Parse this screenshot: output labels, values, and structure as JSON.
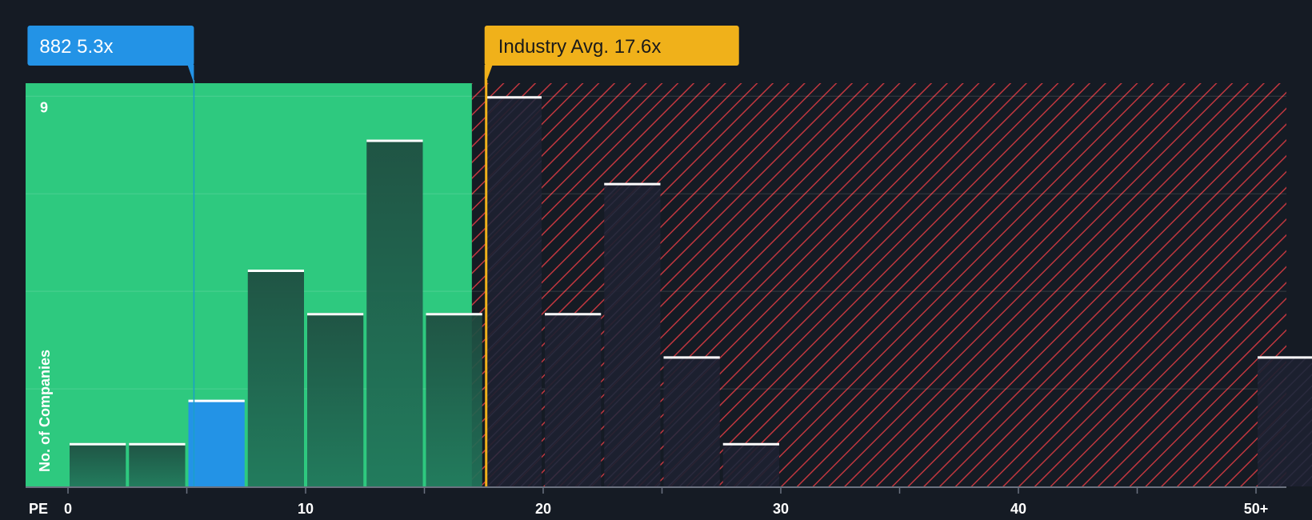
{
  "chart_data": {
    "type": "histogram",
    "xlabel": "PE",
    "ylabel": "No. of Companies",
    "x_ticks": [
      {
        "value": 0,
        "label": "0"
      },
      {
        "value": 10,
        "label": "10"
      },
      {
        "value": 20,
        "label": "20"
      },
      {
        "value": 30,
        "label": "30"
      },
      {
        "value": 40,
        "label": "40"
      },
      {
        "value": 50,
        "label": "50+"
      }
    ],
    "y_tick_label": {
      "value": 9,
      "label": "9"
    },
    "xlim": [
      -1.8,
      51.3
    ],
    "ylim": [
      0,
      9.3
    ],
    "bin_width": 2.5,
    "bins": [
      {
        "start": 0,
        "count": 1
      },
      {
        "start": 2.5,
        "count": 1
      },
      {
        "start": 5,
        "count": 2
      },
      {
        "start": 7.5,
        "count": 5
      },
      {
        "start": 10,
        "count": 4
      },
      {
        "start": 12.5,
        "count": 8
      },
      {
        "start": 15,
        "count": 4
      },
      {
        "start": 17.5,
        "count": 9
      },
      {
        "start": 20,
        "count": 4
      },
      {
        "start": 22.5,
        "count": 7
      },
      {
        "start": 25,
        "count": 3
      },
      {
        "start": 27.5,
        "count": 1
      },
      {
        "start": 50,
        "count": 3
      }
    ],
    "company": {
      "label": "882 5.3x",
      "value": 5.3,
      "highlight_bin": 5
    },
    "industry_avg": {
      "label": "Industry Avg. 17.6x",
      "value": 17.6
    },
    "green_zone_end": 17.0,
    "colors": {
      "background": "#151b24",
      "green_zone": "#2ec97f",
      "red_zone_hatch": "#c0373f",
      "bar_dark": "#1e4a3f",
      "bar_highlight": "#2393e6",
      "company_callout": "#2393e6",
      "industry_callout": "#f0b11a",
      "bar_top": "#ffffff"
    }
  }
}
